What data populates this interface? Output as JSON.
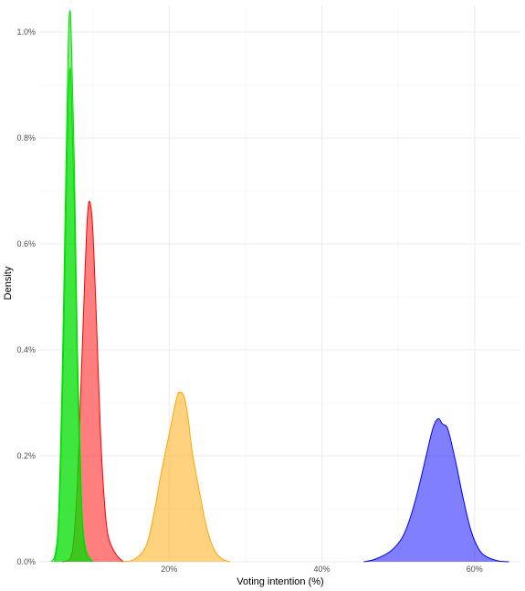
{
  "chart_data": {
    "type": "area",
    "subtype": "density",
    "title": "",
    "xlabel": "Voting intention (%)",
    "ylabel": "Density",
    "xlim": [
      0.03,
      0.66
    ],
    "ylim": [
      0,
      0.0105
    ],
    "grid": true,
    "x_ticks": [
      0.2,
      0.4,
      0.6
    ],
    "x_tick_labels": [
      "20%",
      "40%",
      "60%"
    ],
    "y_ticks": [
      0,
      0.002,
      0.004,
      0.006,
      0.008,
      0.01
    ],
    "y_tick_labels": [
      "0.0%",
      "0.2%",
      "0.4%",
      "0.6%",
      "0.8%",
      "1.0%"
    ],
    "series": [
      {
        "color": "#0000ff",
        "points": [
          [
            0.455,
            0
          ],
          [
            0.47,
            5e-05
          ],
          [
            0.49,
            0.0002
          ],
          [
            0.505,
            0.00045
          ],
          [
            0.515,
            0.0008
          ],
          [
            0.525,
            0.0013
          ],
          [
            0.535,
            0.0019
          ],
          [
            0.545,
            0.0025
          ],
          [
            0.552,
            0.0027
          ],
          [
            0.558,
            0.0026
          ],
          [
            0.565,
            0.0025
          ],
          [
            0.575,
            0.0019
          ],
          [
            0.585,
            0.0012
          ],
          [
            0.595,
            0.0006
          ],
          [
            0.605,
            0.00025
          ],
          [
            0.615,
            0.0001
          ],
          [
            0.63,
            2e-05
          ],
          [
            0.645,
            0
          ]
        ]
      },
      {
        "color": "#ffa500",
        "points": [
          [
            0.14,
            0
          ],
          [
            0.155,
            5e-05
          ],
          [
            0.17,
            0.0003
          ],
          [
            0.18,
            0.0009
          ],
          [
            0.19,
            0.0017
          ],
          [
            0.2,
            0.0024
          ],
          [
            0.21,
            0.0031
          ],
          [
            0.215,
            0.0032
          ],
          [
            0.22,
            0.0031
          ],
          [
            0.225,
            0.0027
          ],
          [
            0.23,
            0.0021
          ],
          [
            0.24,
            0.0013
          ],
          [
            0.25,
            0.0006
          ],
          [
            0.26,
            0.0002
          ],
          [
            0.27,
            5e-05
          ],
          [
            0.28,
            0
          ]
        ]
      },
      {
        "color": "#ff0000",
        "points": [
          [
            0.06,
            0
          ],
          [
            0.07,
            5e-05
          ],
          [
            0.075,
            0.0004
          ],
          [
            0.08,
            0.0015
          ],
          [
            0.085,
            0.0035
          ],
          [
            0.09,
            0.0055
          ],
          [
            0.093,
            0.0065
          ],
          [
            0.096,
            0.0068
          ],
          [
            0.1,
            0.0063
          ],
          [
            0.105,
            0.0045
          ],
          [
            0.11,
            0.0025
          ],
          [
            0.115,
            0.0012
          ],
          [
            0.12,
            0.0005
          ],
          [
            0.13,
            0.00015
          ],
          [
            0.14,
            0
          ]
        ]
      },
      {
        "color": "#00dd00",
        "points": [
          [
            0.045,
            0
          ],
          [
            0.05,
            0.0001
          ],
          [
            0.055,
            0.0008
          ],
          [
            0.06,
            0.0035
          ],
          [
            0.065,
            0.0075
          ],
          [
            0.068,
            0.0098
          ],
          [
            0.07,
            0.0104
          ],
          [
            0.072,
            0.0099
          ],
          [
            0.076,
            0.0075
          ],
          [
            0.08,
            0.004
          ],
          [
            0.085,
            0.0013
          ],
          [
            0.09,
            0.0003
          ],
          [
            0.1,
            0
          ]
        ]
      },
      {
        "color": "#00dd00",
        "points": [
          [
            0.05,
            0
          ],
          [
            0.055,
            0.0006
          ],
          [
            0.06,
            0.0028
          ],
          [
            0.065,
            0.0065
          ],
          [
            0.068,
            0.0087
          ],
          [
            0.07,
            0.0093
          ],
          [
            0.072,
            0.0089
          ],
          [
            0.076,
            0.0066
          ],
          [
            0.08,
            0.0034
          ],
          [
            0.085,
            0.0011
          ],
          [
            0.09,
            0.0002
          ],
          [
            0.1,
            0
          ]
        ]
      }
    ]
  }
}
